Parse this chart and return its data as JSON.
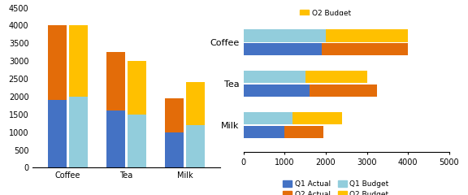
{
  "categories": [
    "Coffee",
    "Tea",
    "Milk"
  ],
  "q1_actual": [
    1900,
    1600,
    1000
  ],
  "q2_actual": [
    2100,
    1650,
    950
  ],
  "q1_budget": [
    2000,
    1500,
    1200
  ],
  "q2_budget": [
    2000,
    1500,
    1200
  ],
  "color_q1_actual": "#4472C4",
  "color_q2_actual": "#E36C09",
  "color_q1_budget": "#92CDDC",
  "color_q2_budget": "#FFC000",
  "left_ylim": [
    0,
    4500
  ],
  "left_yticks": [
    0,
    500,
    1000,
    1500,
    2000,
    2500,
    3000,
    3500,
    4000,
    4500
  ],
  "right_xlim": [
    0,
    5000
  ],
  "right_xticks": [
    0,
    1000,
    2000,
    3000,
    4000,
    5000
  ]
}
